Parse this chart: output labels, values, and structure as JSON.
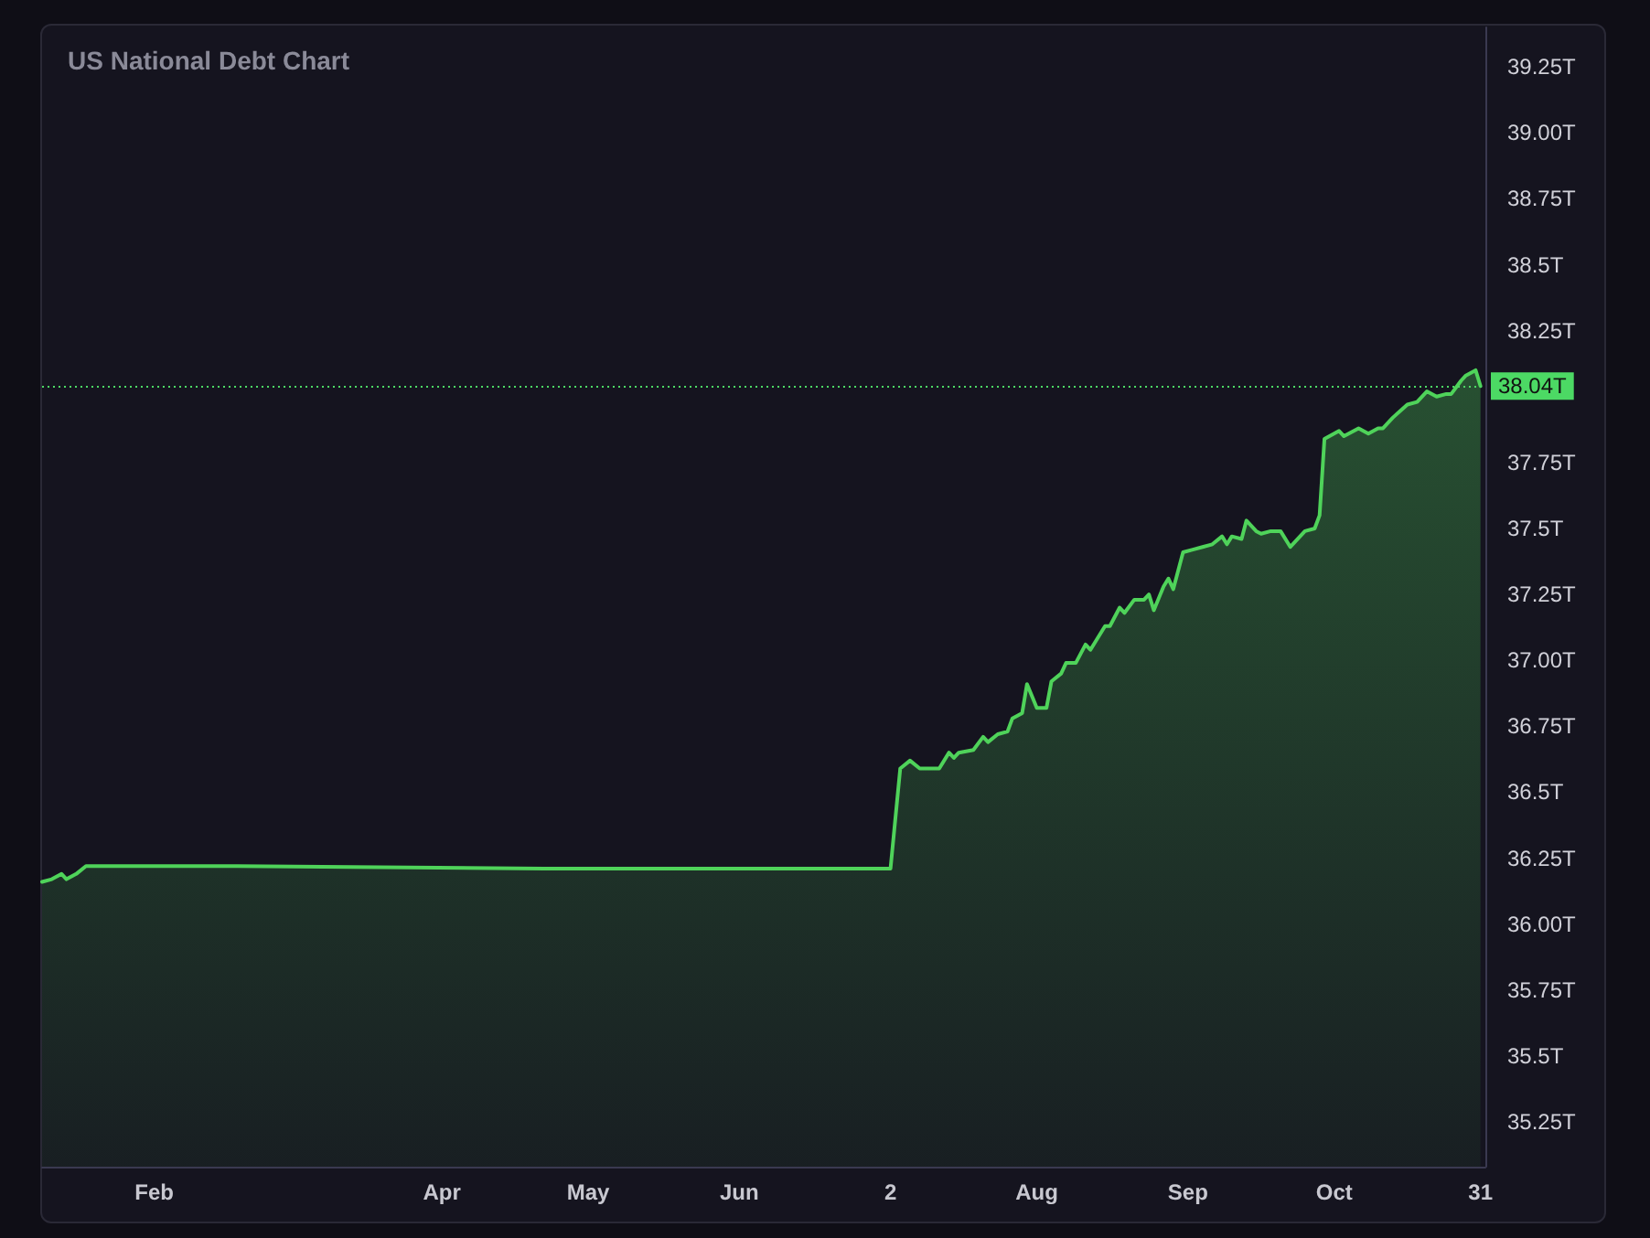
{
  "chart_data": {
    "type": "area",
    "title": "US National Debt Chart",
    "x": [
      "--01-09",
      "--01-11",
      "--01-13",
      "--01-14",
      "--01-16",
      "--01-18",
      "--02-18",
      "--04-22",
      "--07-02",
      "--07-04",
      "--07-06",
      "--07-08",
      "--07-12",
      "--07-14",
      "--07-15",
      "--07-16",
      "--07-19",
      "--07-21",
      "--07-22",
      "--07-24",
      "--07-26",
      "--07-27",
      "--07-29",
      "--07-30",
      "--08-01",
      "--08-03",
      "--08-04",
      "--08-06",
      "--08-07",
      "--08-09",
      "--08-11",
      "--08-12",
      "--08-15",
      "--08-16",
      "--08-18",
      "--08-19",
      "--08-21",
      "--08-23",
      "--08-24",
      "--08-25",
      "--08-27",
      "--08-28",
      "--08-29",
      "--08-31",
      "--09-02",
      "--09-04",
      "--09-06",
      "--09-08",
      "--09-09",
      "--09-10",
      "--09-12",
      "--09-13",
      "--09-15",
      "--09-16",
      "--09-18",
      "--09-20",
      "--09-22",
      "--09-23",
      "--09-25",
      "--09-27",
      "--09-28",
      "--09-29",
      "--10-02",
      "--10-03",
      "--10-06",
      "--10-08",
      "--10-10",
      "--10-11",
      "--10-13",
      "--10-16",
      "--10-18",
      "--10-20",
      "--10-22",
      "--10-24",
      "--10-25",
      "--10-27",
      "--10-28",
      "--10-30",
      "--10-31"
    ],
    "series": [
      {
        "color": "#4fd35a",
        "values": [
          36.16,
          36.17,
          36.19,
          36.17,
          36.19,
          36.22,
          36.22,
          36.21,
          36.21,
          36.59,
          36.62,
          36.59,
          36.59,
          36.65,
          36.63,
          36.65,
          36.66,
          36.71,
          36.69,
          36.72,
          36.73,
          36.78,
          36.8,
          36.91,
          36.82,
          36.82,
          36.92,
          36.95,
          36.99,
          36.99,
          37.06,
          37.04,
          37.13,
          37.13,
          37.2,
          37.18,
          37.23,
          37.23,
          37.25,
          37.19,
          37.28,
          37.31,
          37.27,
          37.41,
          37.42,
          37.43,
          37.44,
          37.47,
          37.44,
          37.47,
          37.46,
          37.53,
          37.49,
          37.48,
          37.49,
          37.49,
          37.43,
          37.45,
          37.49,
          37.5,
          37.55,
          37.84,
          37.87,
          37.85,
          37.88,
          37.86,
          37.88,
          37.88,
          37.92,
          37.97,
          37.98,
          38.02,
          38,
          38.01,
          38.01,
          38.06,
          38.08,
          38.1,
          38.04
        ]
      }
    ],
    "xlim": [
      "--01-09",
      "--11-01"
    ],
    "xticks": [
      {
        "value": "--02-01",
        "label": "Feb"
      },
      {
        "value": "--04-01",
        "label": "Apr"
      },
      {
        "value": "--05-01",
        "label": "May"
      },
      {
        "value": "--06-01",
        "label": "Jun"
      },
      {
        "value": "--07-02",
        "label": "2"
      },
      {
        "value": "--08-01",
        "label": "Aug"
      },
      {
        "value": "--09-01",
        "label": "Sep"
      },
      {
        "value": "--10-01",
        "label": "Oct"
      },
      {
        "value": "--10-31",
        "label": "31"
      }
    ],
    "ylim": [
      35.08,
      39.4
    ],
    "yticks": [
      {
        "value": 35.25,
        "label": "35.25T"
      },
      {
        "value": 35.5,
        "label": "35.5T"
      },
      {
        "value": 35.75,
        "label": "35.75T"
      },
      {
        "value": 36,
        "label": "36.00T"
      },
      {
        "value": 36.25,
        "label": "36.25T"
      },
      {
        "value": 36.5,
        "label": "36.5T"
      },
      {
        "value": 36.75,
        "label": "36.75T"
      },
      {
        "value": 37,
        "label": "37.00T"
      },
      {
        "value": 37.25,
        "label": "37.25T"
      },
      {
        "value": 37.5,
        "label": "37.5T"
      },
      {
        "value": 37.75,
        "label": "37.75T"
      },
      {
        "value": 38.25,
        "label": "38.25T"
      },
      {
        "value": 38.5,
        "label": "38.5T"
      },
      {
        "value": 38.75,
        "label": "38.75T"
      },
      {
        "value": 39,
        "label": "39.00T"
      },
      {
        "value": 39.25,
        "label": "39.25T"
      }
    ],
    "ref_lines": [
      {
        "axis": "y",
        "value": 38.04,
        "label": "38.04T",
        "color": "#4cd964",
        "line_style": "dotted"
      }
    ],
    "grid": false,
    "marker": "none"
  }
}
